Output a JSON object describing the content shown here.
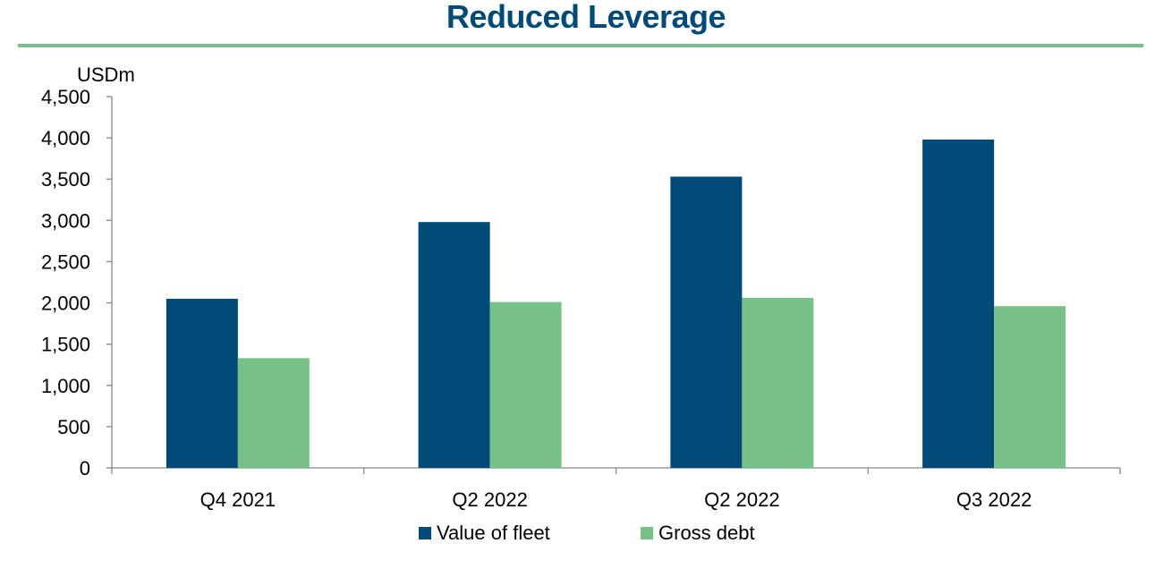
{
  "title": "Reduced Leverage",
  "chart_data": {
    "type": "bar",
    "title": "Reduced Leverage",
    "ylabel": "USDm",
    "xlabel": "",
    "ylim": [
      0,
      4500
    ],
    "yticks": [
      0,
      500,
      1000,
      1500,
      2000,
      2500,
      3000,
      3500,
      4000,
      4500
    ],
    "ytick_labels": [
      "0",
      "500",
      "1,000",
      "1,500",
      "2,000",
      "2,500",
      "3,000",
      "3,500",
      "4,000",
      "4,500"
    ],
    "categories": [
      "Q4 2021",
      "Q2 2022",
      "Q2 2022",
      "Q3 2022"
    ],
    "series": [
      {
        "name": "Value of fleet",
        "color": "#004a78",
        "values": [
          2050,
          2980,
          3530,
          3980
        ]
      },
      {
        "name": "Gross debt",
        "color": "#77c189",
        "values": [
          1330,
          2010,
          2060,
          1960
        ]
      }
    ],
    "grid": false,
    "legend": "bottom-center"
  }
}
